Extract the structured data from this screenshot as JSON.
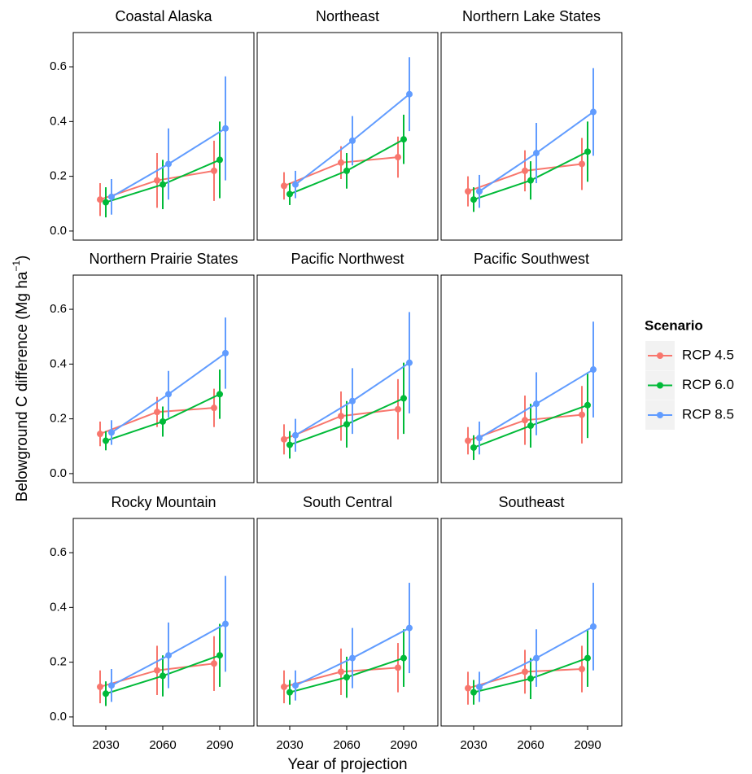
{
  "chart_data": {
    "type": "line",
    "ylabel": "Belowground C difference (Mg ha",
    "ylabel_sup": "−1",
    "ylabel_end": ")",
    "xlabel": "Year of projection",
    "legend_title": "Scenario",
    "categories": [
      "2030",
      "2060",
      "2090"
    ],
    "ylim": [
      -0.033,
      0.725
    ],
    "yticks": [
      {
        "value": 0,
        "label": "0.0"
      },
      {
        "value": 0.2,
        "label": "0.2"
      },
      {
        "value": 0.4,
        "label": "0.4"
      },
      {
        "value": 0.6,
        "label": "0.6"
      }
    ],
    "series": [
      {
        "name": "RCP 4.5",
        "color": "#F8766D"
      },
      {
        "name": "RCP 6.0",
        "color": "#00BA38"
      },
      {
        "name": "RCP 8.5",
        "color": "#619CFF"
      }
    ],
    "panels": [
      {
        "title": "Coastal Alaska",
        "series": [
          {
            "values": [
              0.115,
              0.185,
              0.22
            ],
            "errors": [
              0.06,
              0.1,
              0.11
            ]
          },
          {
            "values": [
              0.105,
              0.17,
              0.26
            ],
            "errors": [
              0.055,
              0.09,
              0.14
            ]
          },
          {
            "values": [
              0.125,
              0.245,
              0.375
            ],
            "errors": [
              0.065,
              0.13,
              0.19
            ]
          }
        ]
      },
      {
        "title": "Northeast",
        "series": [
          {
            "values": [
              0.165,
              0.25,
              0.27
            ],
            "errors": [
              0.05,
              0.06,
              0.075
            ]
          },
          {
            "values": [
              0.135,
              0.22,
              0.335
            ],
            "errors": [
              0.04,
              0.065,
              0.09
            ]
          },
          {
            "values": [
              0.17,
              0.33,
              0.5
            ],
            "errors": [
              0.05,
              0.09,
              0.135
            ]
          }
        ]
      },
      {
        "title": "Northern Lake States",
        "series": [
          {
            "values": [
              0.145,
              0.22,
              0.245
            ],
            "errors": [
              0.055,
              0.075,
              0.095
            ]
          },
          {
            "values": [
              0.115,
              0.185,
              0.29
            ],
            "errors": [
              0.045,
              0.07,
              0.11
            ]
          },
          {
            "values": [
              0.145,
              0.285,
              0.435
            ],
            "errors": [
              0.06,
              0.11,
              0.16
            ]
          }
        ]
      },
      {
        "title": "Northern Prairie States",
        "series": [
          {
            "values": [
              0.145,
              0.225,
              0.24
            ],
            "errors": [
              0.045,
              0.055,
              0.07
            ]
          },
          {
            "values": [
              0.12,
              0.19,
              0.29
            ],
            "errors": [
              0.035,
              0.055,
              0.09
            ]
          },
          {
            "values": [
              0.15,
              0.29,
              0.44
            ],
            "errors": [
              0.045,
              0.085,
              0.13
            ]
          }
        ]
      },
      {
        "title": "Pacific Northwest",
        "series": [
          {
            "values": [
              0.125,
              0.21,
              0.235
            ],
            "errors": [
              0.055,
              0.09,
              0.11
            ]
          },
          {
            "values": [
              0.105,
              0.18,
              0.275
            ],
            "errors": [
              0.05,
              0.085,
              0.13
            ]
          },
          {
            "values": [
              0.14,
              0.265,
              0.405
            ],
            "errors": [
              0.06,
              0.12,
              0.185
            ]
          }
        ]
      },
      {
        "title": "Pacific Southwest",
        "series": [
          {
            "values": [
              0.12,
              0.195,
              0.215
            ],
            "errors": [
              0.05,
              0.09,
              0.105
            ]
          },
          {
            "values": [
              0.095,
              0.175,
              0.25
            ],
            "errors": [
              0.045,
              0.08,
              0.12
            ]
          },
          {
            "values": [
              0.13,
              0.255,
              0.38
            ],
            "errors": [
              0.06,
              0.115,
              0.175
            ]
          }
        ]
      },
      {
        "title": "Rocky Mountain",
        "series": [
          {
            "values": [
              0.11,
              0.17,
              0.195
            ],
            "errors": [
              0.06,
              0.09,
              0.1
            ]
          },
          {
            "values": [
              0.085,
              0.15,
              0.225
            ],
            "errors": [
              0.045,
              0.075,
              0.115
            ]
          },
          {
            "values": [
              0.115,
              0.225,
              0.34
            ],
            "errors": [
              0.06,
              0.12,
              0.175
            ]
          }
        ]
      },
      {
        "title": "South Central",
        "series": [
          {
            "values": [
              0.11,
              0.165,
              0.18
            ],
            "errors": [
              0.06,
              0.085,
              0.09
            ]
          },
          {
            "values": [
              0.09,
              0.145,
              0.215
            ],
            "errors": [
              0.045,
              0.075,
              0.105
            ]
          },
          {
            "values": [
              0.115,
              0.215,
              0.325
            ],
            "errors": [
              0.055,
              0.11,
              0.165
            ]
          }
        ]
      },
      {
        "title": "Southeast",
        "series": [
          {
            "values": [
              0.105,
              0.165,
              0.175
            ],
            "errors": [
              0.06,
              0.08,
              0.085
            ]
          },
          {
            "values": [
              0.09,
              0.14,
              0.215
            ],
            "errors": [
              0.045,
              0.075,
              0.105
            ]
          },
          {
            "values": [
              0.11,
              0.215,
              0.33
            ],
            "errors": [
              0.055,
              0.105,
              0.16
            ]
          }
        ]
      }
    ]
  }
}
